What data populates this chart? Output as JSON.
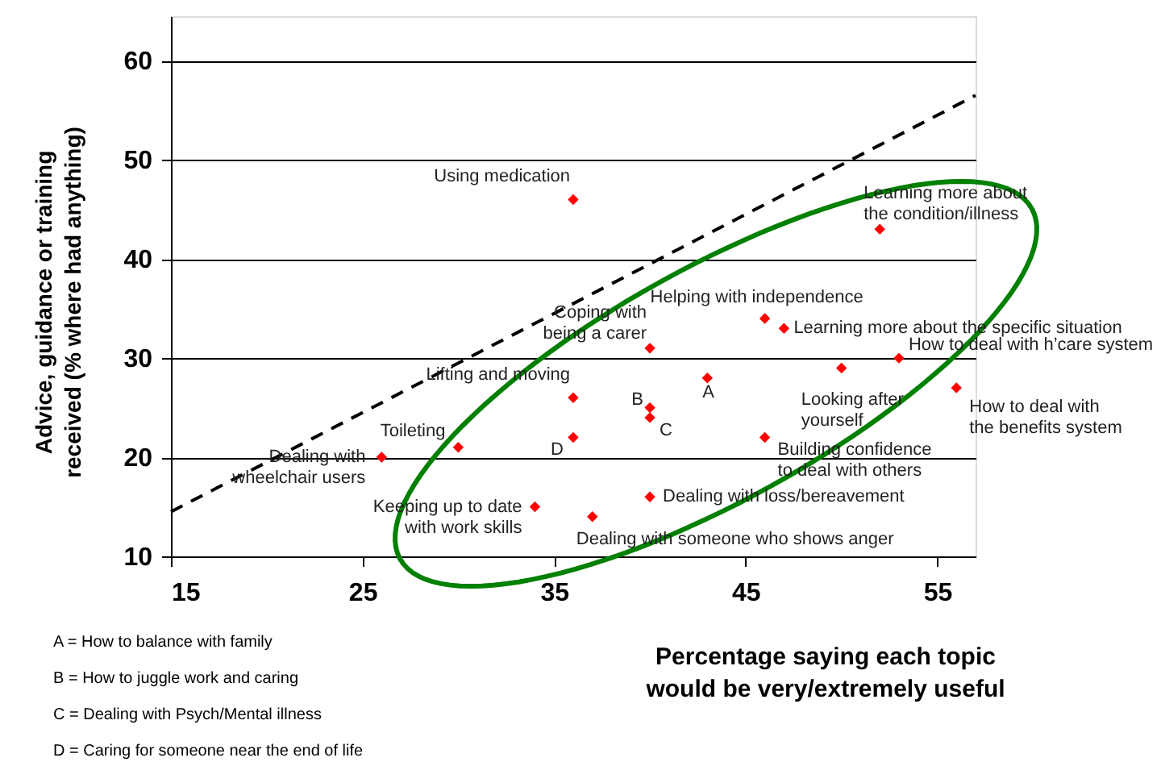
{
  "chart_data": {
    "type": "scatter",
    "xlabel": "Percentage saying each topic\nwould be very/extremely useful",
    "ylabel": "Advice, guidance or training\nreceived (% where had anything)",
    "xlim": [
      15,
      57
    ],
    "xticks": [
      15,
      25,
      35,
      45,
      55
    ],
    "ylim": [
      10,
      64.5
    ],
    "yticks": [
      10,
      20,
      30,
      40,
      50,
      60
    ],
    "grid": "y",
    "series": [
      {
        "color": "#ff0000",
        "marker": "diamond",
        "x": [
          36,
          40,
          36,
          40,
          40,
          36,
          30,
          26,
          34,
          37,
          40,
          43,
          46,
          47,
          52,
          50,
          53,
          56,
          46
        ],
        "values": [
          46,
          31,
          26,
          25,
          24,
          22,
          21,
          20,
          15,
          14,
          16,
          28,
          34,
          33,
          43,
          29,
          30,
          27,
          22
        ]
      },
      {
        "type": "line",
        "color": "#000000",
        "line_style": "dashed",
        "x": [
          15,
          57
        ],
        "values": [
          14.5,
          56.5
        ]
      }
    ],
    "annotations": [
      {
        "text": "Using medication",
        "x": 36,
        "y": 46
      },
      {
        "text": "Coping with\nbeing a carer",
        "x": 40,
        "y": 31
      },
      {
        "text": "Lifting and moving",
        "x": 36,
        "y": 26
      },
      {
        "text": "B",
        "x": 40,
        "y": 25
      },
      {
        "text": "C",
        "x": 40,
        "y": 24
      },
      {
        "text": "D",
        "x": 36,
        "y": 22
      },
      {
        "text": "Toileting",
        "x": 30,
        "y": 21
      },
      {
        "text": "Dealing with\nwheelchair users",
        "x": 26,
        "y": 20
      },
      {
        "text": "Keeping up to date\nwith work skills",
        "x": 34,
        "y": 15
      },
      {
        "text": "Dealing with someone who shows anger",
        "x": 37,
        "y": 14
      },
      {
        "text": "Dealing with loss/bereavement",
        "x": 40,
        "y": 16
      },
      {
        "text": "A",
        "x": 43,
        "y": 28
      },
      {
        "text": "Helping with independence",
        "x": 46,
        "y": 34
      },
      {
        "text": "Learning more about the specific situation",
        "x": 47,
        "y": 33
      },
      {
        "text": "Learning more about\nthe condition/illness",
        "x": 52,
        "y": 43
      },
      {
        "text": "Looking after\nyourself",
        "x": 50,
        "y": 29
      },
      {
        "text": "How to deal with h’care system",
        "x": 53,
        "y": 30
      },
      {
        "text": "How to deal with\nthe benefits system",
        "x": 56,
        "y": 27
      },
      {
        "text": "Building confidence\nto deal with others",
        "x": 46,
        "y": 22
      },
      "A = How to balance with family",
      "B = How to juggle work and caring",
      "C = Dealing with Psych/Mental illness",
      "D = Caring for someone near the end of life"
    ]
  }
}
